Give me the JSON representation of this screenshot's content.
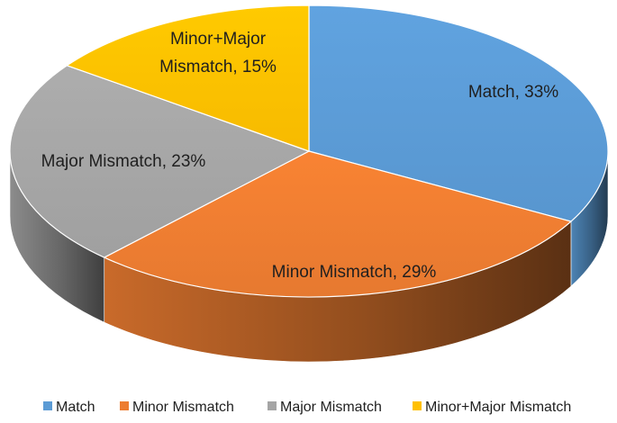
{
  "chart_data": {
    "type": "pie",
    "style": "3d",
    "title": "",
    "labels": [
      "Match",
      "Minor Mismatch",
      "Major Mismatch",
      "Minor+Major Mismatch"
    ],
    "values": [
      33,
      29,
      23,
      15
    ],
    "unit": "%",
    "data_labels": [
      [
        "Match, 33%"
      ],
      [
        "Minor Mismatch, 29%"
      ],
      [
        "Major Mismatch, 23%"
      ],
      [
        "Minor+Major",
        "Mismatch, 15%"
      ]
    ],
    "colors": [
      "#5b9bd5",
      "#ed7d31",
      "#a5a5a5",
      "#ffc000"
    ],
    "legend": {
      "placement": "bottom",
      "entries": [
        "Match",
        "Minor Mismatch",
        "Major Mismatch",
        "Minor+Major Mismatch"
      ]
    }
  }
}
